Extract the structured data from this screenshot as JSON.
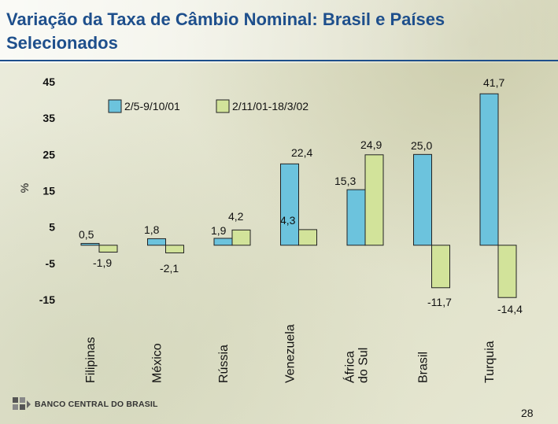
{
  "title": "Variação da Taxa de Câmbio Nominal: Brasil e Países Selecionados",
  "footer": {
    "logo_text": "BANCO CENTRAL DO BRASIL",
    "page_number": "28"
  },
  "colors": {
    "series1": "#6cc3dd",
    "series2": "#d2e39a",
    "title": "#1e4f8c"
  },
  "chart_data": {
    "type": "bar",
    "title": "Variação da Taxa de Câmbio Nominal: Brasil e Países Selecionados",
    "xlabel": "",
    "ylabel": "%",
    "ylim": [
      -15,
      45
    ],
    "yticks": [
      "45",
      "35",
      "25",
      "15",
      "5",
      "-5",
      "-15"
    ],
    "ytick_values": [
      45,
      35,
      25,
      15,
      5,
      -5,
      -15
    ],
    "categories": [
      "Filipinas",
      "México",
      "Rússia",
      "Venezuela",
      "África do Sul",
      "Brasil",
      "Turquia"
    ],
    "category_lines": [
      [
        "Filipinas"
      ],
      [
        "México"
      ],
      [
        "Rússia"
      ],
      [
        "Venezuela"
      ],
      [
        "África",
        "do Sul"
      ],
      [
        "Brasil"
      ],
      [
        "Turquia"
      ]
    ],
    "series": [
      {
        "name": "2/5-9/10/01",
        "values": [
          0.5,
          1.8,
          1.9,
          22.4,
          15.3,
          25.0,
          41.7
        ],
        "labels": [
          "0,5",
          "1,8",
          "1,9",
          "22,4",
          "15,3",
          "25,0",
          "41,7"
        ]
      },
      {
        "name": "2/11/01-18/3/02",
        "values": [
          -1.9,
          -2.1,
          4.2,
          4.3,
          24.9,
          -11.7,
          -14.4
        ],
        "labels": [
          "-1,9",
          "-2,1",
          "4,2",
          "4,3",
          "24,9",
          "-11,7",
          "-14,4"
        ]
      }
    ],
    "legend": [
      "2/5-9/10/01",
      "2/11/01-18/3/02"
    ]
  }
}
